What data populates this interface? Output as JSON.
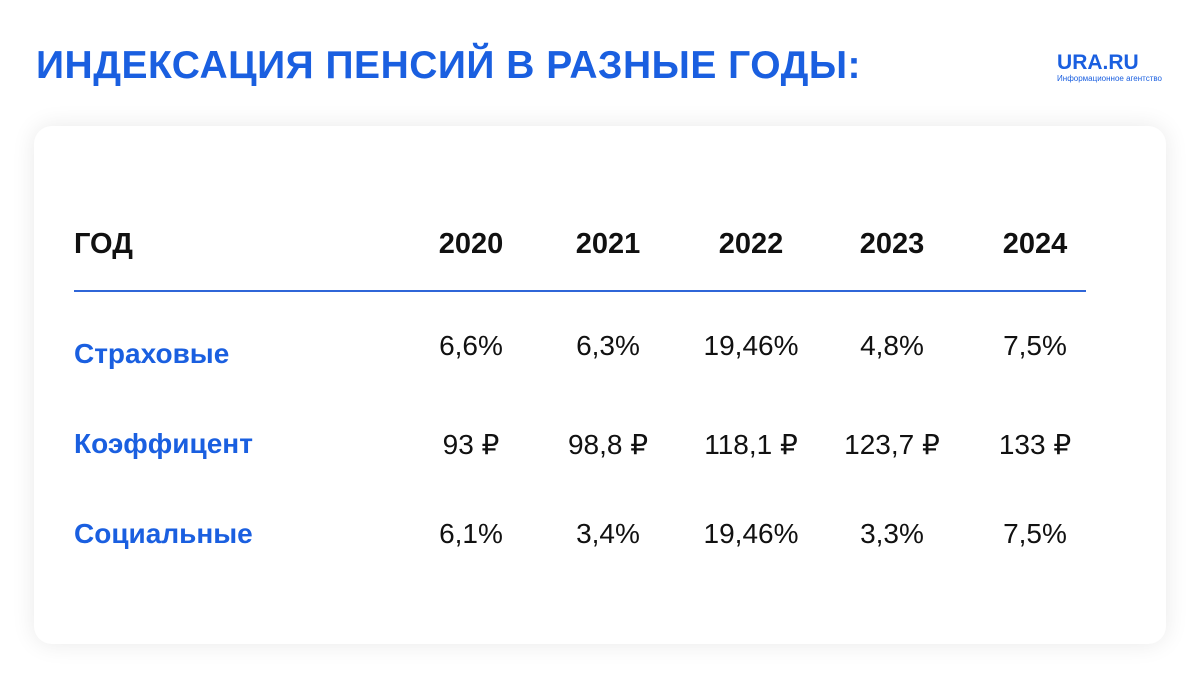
{
  "header": {
    "title": "ИНДЕКСАЦИЯ ПЕНСИЙ В РАЗНЫЕ ГОДЫ:",
    "logo_name": "URA.RU",
    "logo_sub": "Информационное агентство"
  },
  "colors": {
    "accent": "#1a5fe0",
    "text": "#111111",
    "divider": "#2f66d8"
  },
  "chart_data": {
    "type": "table",
    "columns": [
      "ГОД",
      "2020",
      "2021",
      "2022",
      "2023",
      "2024"
    ],
    "rows": [
      {
        "label": "Страховые",
        "values": [
          "6,6%",
          "6,3%",
          "19,46%",
          "4,8%",
          "7,5%"
        ]
      },
      {
        "label": "Коэффицент",
        "values": [
          "93 ₽",
          "98,8 ₽",
          "118,1 ₽",
          "123,7 ₽",
          "133 ₽"
        ]
      },
      {
        "label": "Социальные",
        "values": [
          "6,1%",
          "3,4%",
          "19,46%",
          "3,3%",
          "7,5%"
        ]
      }
    ]
  }
}
